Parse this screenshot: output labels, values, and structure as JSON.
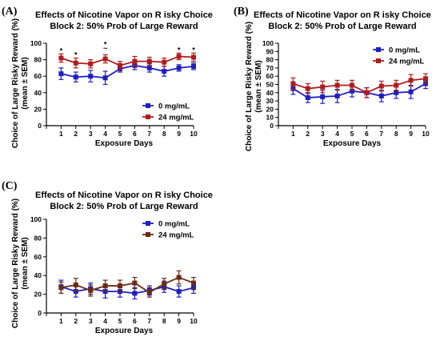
{
  "colors": {
    "low": "#1f1fbf",
    "high": "#b01c1c",
    "high_C": "#6b2a14"
  },
  "chart_data": [
    {
      "type": "line",
      "panel": "(A)",
      "title": [
        "Effects of Nicotine Vapor on R isky Choice",
        "Block 2: 50% Prob of Large  Reward"
      ],
      "xlabel": "Exposure Days",
      "ylabel": [
        "Choice of Large Risky Reward (%)",
        "(mean ± SEM)"
      ],
      "x": [
        1,
        2,
        3,
        4,
        5,
        6,
        7,
        8,
        9,
        10
      ],
      "xlim": [
        0,
        10
      ],
      "ylim": [
        0,
        100
      ],
      "xticks": [
        "0",
        "1",
        "2",
        "3",
        "4",
        "5",
        "6",
        "7",
        "8",
        "9",
        "10"
      ],
      "yticks": [
        "0",
        "20",
        "40",
        "60",
        "80",
        "100"
      ],
      "legend_position": "center-right",
      "series": [
        {
          "name": "0 mg/mL",
          "color": "#1f1fbf",
          "marker": "square",
          "values": [
            63,
            59,
            60,
            58,
            69,
            73,
            70,
            66,
            70,
            72
          ],
          "sem": [
            7,
            6,
            7,
            8,
            4,
            5,
            5,
            6,
            4,
            4
          ]
        },
        {
          "name": "24 mg/mL",
          "color": "#b01c1c",
          "marker": "square",
          "values": [
            82,
            76,
            75,
            81,
            73,
            78,
            78,
            77,
            84,
            83
          ],
          "sem": [
            5,
            6,
            5,
            5,
            5,
            6,
            5,
            5,
            4,
            5
          ]
        }
      ],
      "annotations": [
        {
          "x": 1,
          "text": "*"
        },
        {
          "x": 2,
          "text": "*"
        },
        {
          "x": 4,
          "text": "~"
        },
        {
          "x": 4,
          "text": "*"
        },
        {
          "x": 9,
          "text": "*"
        },
        {
          "x": 10,
          "text": "*"
        }
      ]
    },
    {
      "type": "line",
      "panel": "(B)",
      "title": [
        "Effects of Nicotine Vapor on R isky Choice",
        "Block 2: 50% Prob of Large  Reward"
      ],
      "xlabel": "Exposure Days",
      "ylabel": [
        "Choice of Large Risky Reward (%)",
        "(mean ± SEM)"
      ],
      "x": [
        1,
        2,
        3,
        4,
        5,
        6,
        7,
        8,
        9,
        10
      ],
      "xlim": [
        0,
        10
      ],
      "ylim": [
        0,
        100
      ],
      "xticks": [
        "0",
        "1",
        "2",
        "3",
        "4",
        "5",
        "6",
        "7",
        "8",
        "9",
        "10"
      ],
      "yticks": [
        "0",
        "10",
        "20",
        "30",
        "40",
        "50",
        "60",
        "70",
        "80",
        "90",
        "100"
      ],
      "legend_position": "top-right",
      "series": [
        {
          "name": "0 mg/mL",
          "color": "#1f1fbf",
          "marker": "square",
          "values": [
            45,
            34,
            35,
            36,
            42,
            40,
            36,
            40,
            41,
            51
          ],
          "sem": [
            7,
            6,
            8,
            8,
            7,
            6,
            7,
            7,
            8,
            6
          ]
        },
        {
          "name": "24 mg/mL",
          "color": "#b01c1c",
          "marker": "square",
          "values": [
            51,
            45,
            47,
            49,
            49,
            40,
            48,
            49,
            55,
            57
          ],
          "sem": [
            7,
            6,
            7,
            6,
            6,
            6,
            6,
            6,
            7,
            6
          ]
        }
      ],
      "annotations": []
    },
    {
      "type": "line",
      "panel": "(C)",
      "title": [
        "Effects of Nicotine Vapor on R isky Choice",
        "Block 2: 50% Prob of Large  Reward"
      ],
      "xlabel": "Exposure Days",
      "ylabel": [
        "Choice of Large Risky Reward (%)",
        "(mean ± SEM)"
      ],
      "x": [
        1,
        2,
        3,
        4,
        5,
        6,
        7,
        8,
        9,
        10
      ],
      "xlim": [
        0,
        10
      ],
      "ylim": [
        0,
        100
      ],
      "xticks": [
        "0",
        "1",
        "2",
        "3",
        "4",
        "5",
        "6",
        "7",
        "8",
        "9",
        "10"
      ],
      "yticks": [
        "0",
        "20",
        "40",
        "60",
        "80",
        "100"
      ],
      "legend_position": "center-right",
      "series": [
        {
          "name": "0 mg/mL",
          "color": "#1f1fbf",
          "marker": "square",
          "values": [
            28,
            23,
            26,
            23,
            23,
            21,
            24,
            28,
            23,
            27
          ],
          "sem": [
            7,
            6,
            6,
            7,
            6,
            6,
            5,
            6,
            6,
            6
          ]
        },
        {
          "name": "24 mg/mL",
          "color": "#6b2a14",
          "marker": "square",
          "values": [
            27,
            30,
            24,
            29,
            29,
            32,
            22,
            31,
            38,
            32
          ],
          "sem": [
            6,
            7,
            6,
            6,
            6,
            6,
            5,
            6,
            7,
            6
          ]
        }
      ],
      "annotations": []
    }
  ]
}
